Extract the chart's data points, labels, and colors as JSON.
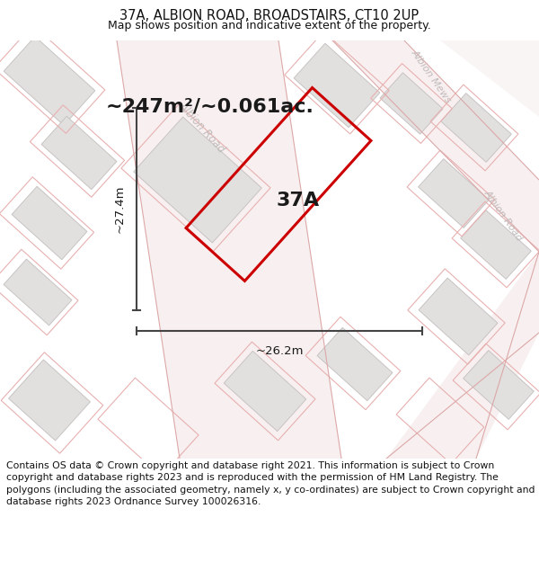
{
  "title_line1": "37A, ALBION ROAD, BROADSTAIRS, CT10 2UP",
  "title_line2": "Map shows position and indicative extent of the property.",
  "footer_text": "Contains OS data © Crown copyright and database right 2021. This information is subject to Crown copyright and database rights 2023 and is reproduced with the permission of HM Land Registry. The polygons (including the associated geometry, namely x, y co-ordinates) are subject to Crown copyright and database rights 2023 Ordnance Survey 100026316.",
  "area_label": "~247m²/~0.061ac.",
  "property_label": "37A",
  "dim_width": "~26.2m",
  "dim_height": "~27.4m",
  "map_bg": "#f0eeee",
  "building_fill": "#e2dfdf",
  "building_edge": "#c8c4c4",
  "parcel_edge": "#e8b0b0",
  "property_color": "#cc0000",
  "road_label_color": "#c0bbbb",
  "dim_color": "#444444",
  "text_dark": "#1a1a1a",
  "title_fontsize": 10.5,
  "subtitle_fontsize": 9,
  "footer_fontsize": 7.8,
  "area_fontsize": 16,
  "label_fontsize": 16,
  "dim_fontsize": 9.5,
  "road_fontsize": 8.5
}
